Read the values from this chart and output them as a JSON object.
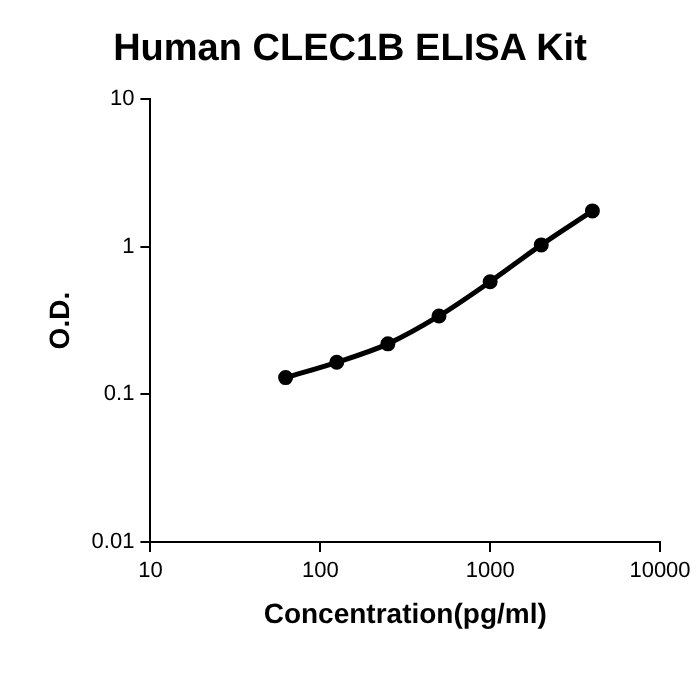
{
  "chart_data": {
    "type": "line",
    "title": "Human CLEC1B ELISA Kit",
    "xlabel": "Concentration(pg/ml)",
    "ylabel": "O.D.",
    "x": [
      62.5,
      125,
      250,
      500,
      1000,
      2000,
      4000
    ],
    "series": [
      {
        "color": "#000000",
        "values": [
          0.13,
          0.165,
          0.22,
          0.34,
          0.58,
          1.03,
          1.75
        ]
      }
    ],
    "log": "xy",
    "xlim": [
      10,
      10000
    ],
    "xticks": [
      10,
      100,
      1000,
      10000
    ],
    "ylim": [
      0.01,
      10
    ],
    "yticks": [
      0.01,
      0.1,
      1,
      10
    ],
    "grid": false,
    "legend": false,
    "marker": "circle",
    "line_style": "solid"
  }
}
